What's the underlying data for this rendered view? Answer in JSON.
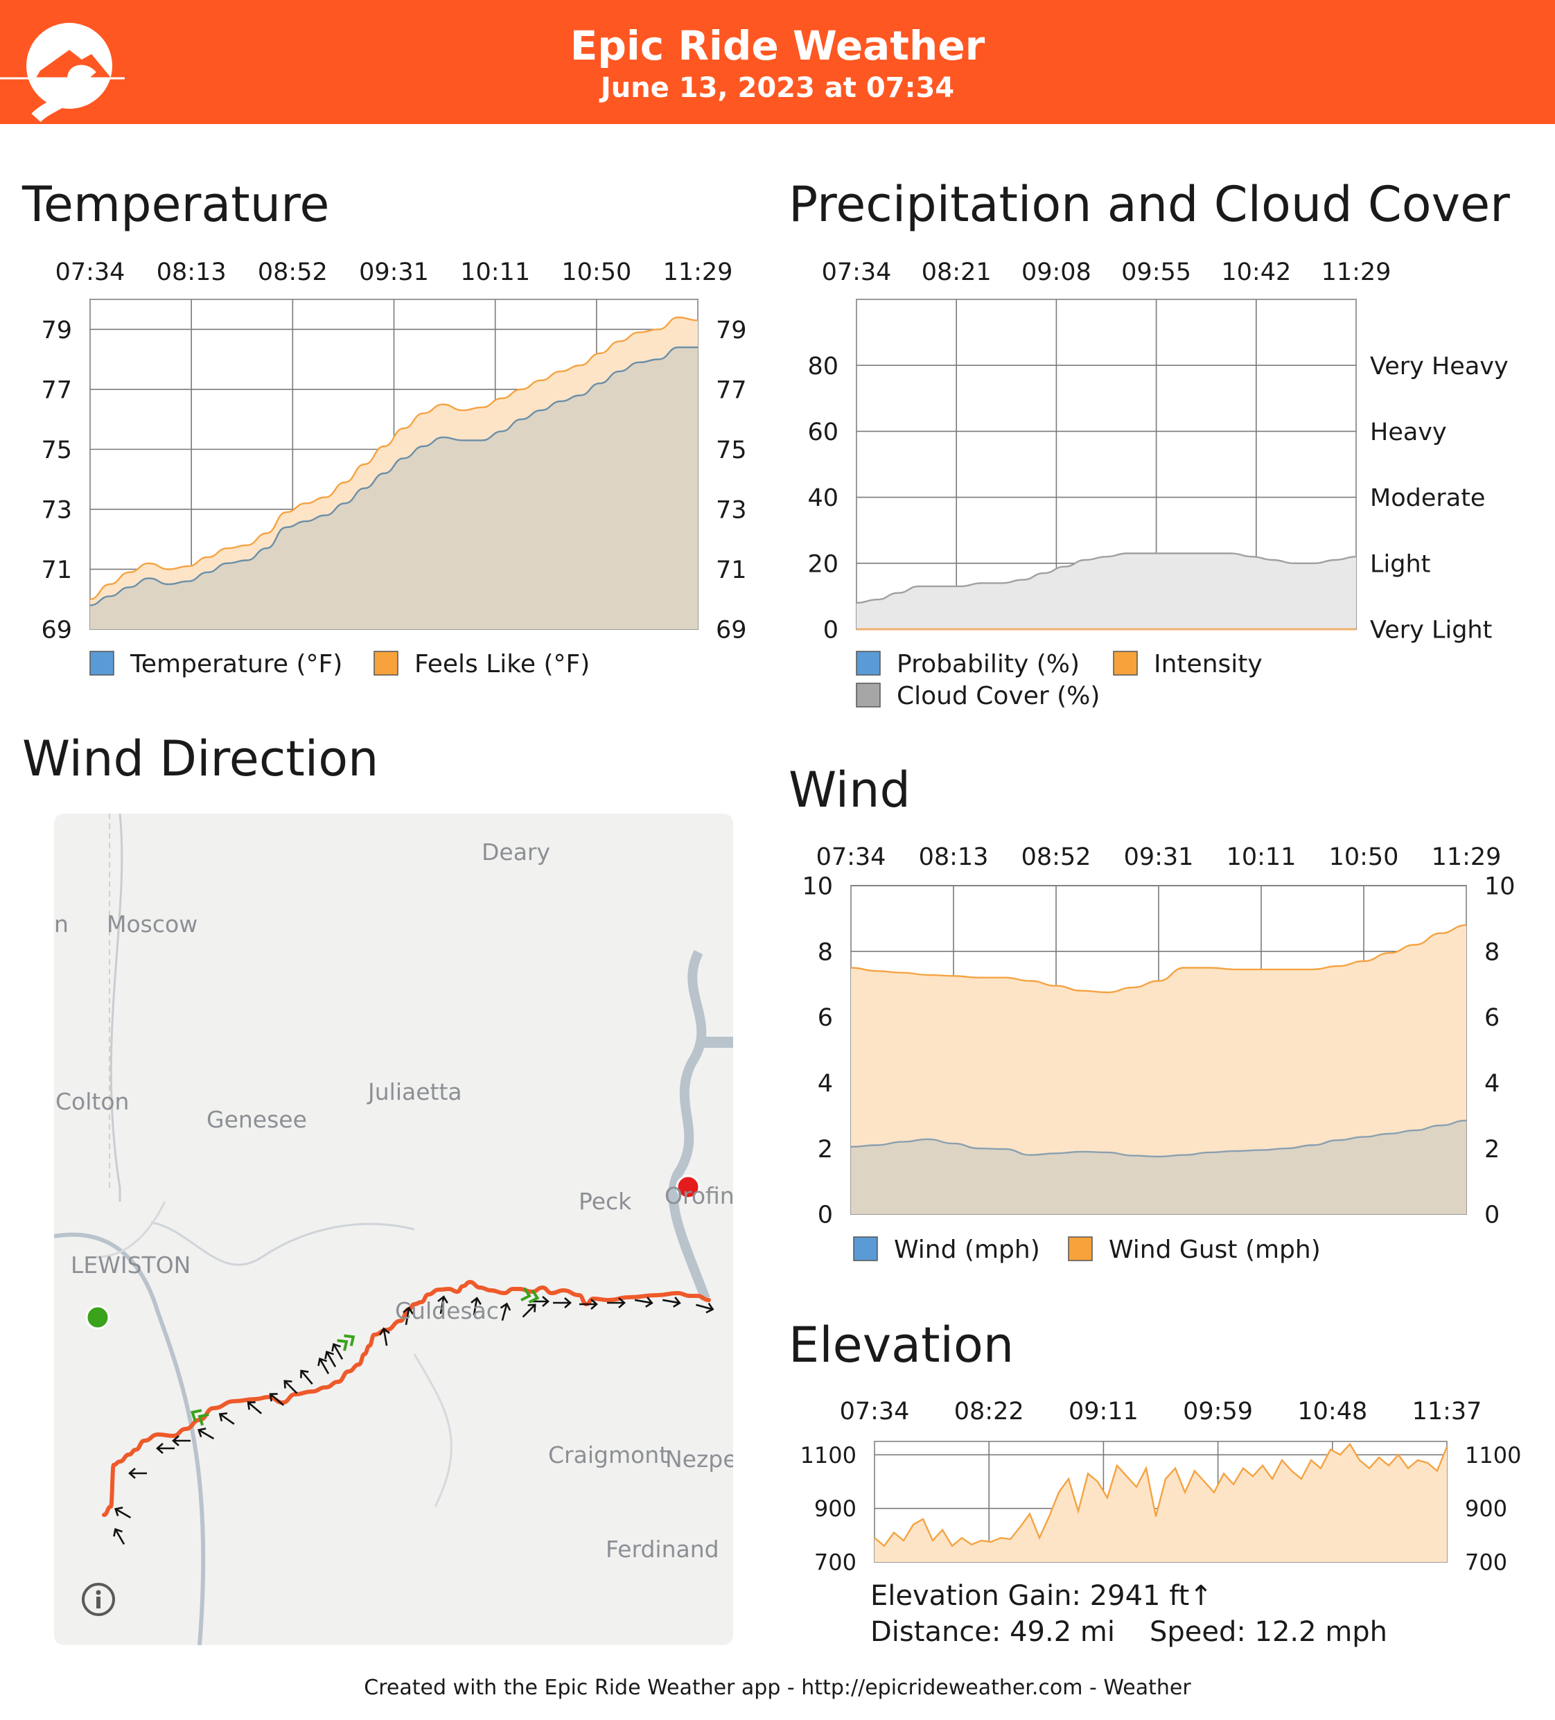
{
  "header": {
    "title": "Epic Ride Weather",
    "subtitle": "June 13, 2023 at 07:34",
    "background_color": "#ff5722"
  },
  "sections": {
    "temperature": "Temperature",
    "precipitation": "Precipitation and Cloud Cover",
    "wind_direction": "Wind Direction",
    "wind": "Wind",
    "elevation": "Elevation"
  },
  "chart_data": [
    {
      "id": "temperature",
      "type": "area",
      "title": "Temperature",
      "x_labels": [
        "07:34",
        "08:13",
        "08:52",
        "09:31",
        "10:11",
        "10:50",
        "11:29"
      ],
      "y_ticks": [
        69,
        71,
        73,
        75,
        77,
        79
      ],
      "ylim": [
        69,
        80
      ],
      "grid": true,
      "legend_placement": "bottom",
      "series": [
        {
          "name": "Temperature (°F)",
          "color": "#5b9bd5",
          "values": [
            69.8,
            70.1,
            70.4,
            70.7,
            70.5,
            70.6,
            70.9,
            71.2,
            71.3,
            71.7,
            72.4,
            72.6,
            72.8,
            73.2,
            73.7,
            74.2,
            74.7,
            75.1,
            75.4,
            75.3,
            75.3,
            75.6,
            76.0,
            76.3,
            76.6,
            76.8,
            77.2,
            77.6,
            77.9,
            78.0,
            78.4,
            78.4
          ]
        },
        {
          "name": "Feels Like (°F)",
          "color": "#f7a23a",
          "values": [
            70.0,
            70.5,
            70.9,
            71.2,
            71.0,
            71.1,
            71.4,
            71.7,
            71.8,
            72.2,
            72.9,
            73.2,
            73.4,
            73.9,
            74.5,
            75.1,
            75.7,
            76.2,
            76.5,
            76.3,
            76.4,
            76.7,
            77.0,
            77.3,
            77.6,
            77.8,
            78.2,
            78.6,
            78.9,
            79.0,
            79.4,
            79.3
          ]
        }
      ]
    },
    {
      "id": "precipitation",
      "type": "area",
      "title": "Precipitation and Cloud Cover",
      "x_labels": [
        "07:34",
        "08:21",
        "09:08",
        "09:55",
        "10:42",
        "11:29"
      ],
      "y_ticks": [
        0,
        20,
        40,
        60,
        80
      ],
      "right_labels": [
        "Very Light",
        "Light",
        "Moderate",
        "Heavy",
        "Very Heavy"
      ],
      "ylim": [
        0,
        100
      ],
      "grid": true,
      "legend_placement": "bottom",
      "series": [
        {
          "name": "Probability (%)",
          "color": "#5b9bd5",
          "values": [
            0,
            0,
            0,
            0,
            0,
            0,
            0,
            0,
            0,
            0,
            0,
            0,
            0,
            0,
            0,
            0,
            0,
            0,
            0,
            0,
            0,
            0,
            0,
            0,
            0
          ]
        },
        {
          "name": "Intensity",
          "color": "#f7a23a",
          "values": [
            0,
            0,
            0,
            0,
            0,
            0,
            0,
            0,
            0,
            0,
            0,
            0,
            0,
            0,
            0,
            0,
            0,
            0,
            0,
            0,
            0,
            0,
            0,
            0,
            0
          ]
        },
        {
          "name": "Cloud Cover (%)",
          "color": "#a6a6a6",
          "values": [
            8,
            9,
            11,
            13,
            13,
            13,
            14,
            14,
            15,
            17,
            19,
            21,
            22,
            23,
            23,
            23,
            23,
            23,
            23,
            22,
            21,
            20,
            20,
            21,
            22
          ]
        }
      ]
    },
    {
      "id": "wind",
      "type": "area",
      "title": "Wind",
      "x_labels": [
        "07:34",
        "08:13",
        "08:52",
        "09:31",
        "10:11",
        "10:50",
        "11:29"
      ],
      "y_ticks": [
        0,
        2,
        4,
        6,
        8,
        10
      ],
      "ylim": [
        0,
        10
      ],
      "grid": true,
      "legend_placement": "bottom",
      "series": [
        {
          "name": "Wind (mph)",
          "color": "#5b9bd5",
          "values": [
            2.05,
            2.1,
            2.2,
            2.28,
            2.15,
            2.0,
            1.98,
            1.8,
            1.85,
            1.9,
            1.88,
            1.78,
            1.75,
            1.8,
            1.88,
            1.92,
            1.95,
            2.0,
            2.1,
            2.25,
            2.35,
            2.45,
            2.55,
            2.7,
            2.85
          ]
        },
        {
          "name": "Wind Gust (mph)",
          "color": "#f7a23a",
          "values": [
            7.5,
            7.4,
            7.35,
            7.28,
            7.25,
            7.2,
            7.2,
            7.1,
            6.95,
            6.8,
            6.75,
            6.9,
            7.1,
            7.5,
            7.5,
            7.45,
            7.45,
            7.45,
            7.45,
            7.55,
            7.7,
            7.95,
            8.2,
            8.55,
            8.8
          ]
        }
      ]
    },
    {
      "id": "elevation",
      "type": "area",
      "title": "Elevation",
      "x_labels": [
        "07:34",
        "08:22",
        "09:11",
        "09:59",
        "10:48",
        "11:37"
      ],
      "y_ticks": [
        700,
        900,
        1100
      ],
      "ylim": [
        700,
        1150
      ],
      "grid": true,
      "series": [
        {
          "name": "Elevation",
          "color": "#f7a23a",
          "values": [
            790,
            760,
            810,
            780,
            840,
            860,
            780,
            820,
            760,
            790,
            765,
            780,
            775,
            790,
            785,
            830,
            880,
            790,
            870,
            960,
            1010,
            890,
            1030,
            1000,
            940,
            1060,
            1020,
            980,
            1050,
            870,
            1010,
            1050,
            960,
            1040,
            1000,
            960,
            1030,
            990,
            1050,
            1020,
            1060,
            1010,
            1080,
            1040,
            1010,
            1080,
            1050,
            1120,
            1100,
            1140,
            1080,
            1050,
            1090,
            1060,
            1100,
            1050,
            1080,
            1070,
            1040,
            1130
          ]
        }
      ]
    }
  ],
  "map": {
    "places": [
      "Deary",
      "Moscow",
      "Colton",
      "Genesee",
      "Juliaetta",
      "LEWISTON",
      "Peck",
      "Orofino",
      "Culdesac",
      "Craigmont",
      "Nezperce",
      "Ferdinand"
    ],
    "partial_place": "n",
    "info_icon": "info-icon",
    "start_marker_color": "#3aa21b",
    "end_marker_color": "#e51c1c",
    "route_color": "#ee5a2a",
    "wind_arrow_color": "#111111",
    "tailwind_color": "#3aa21b"
  },
  "stats": {
    "elevation_gain": "Elevation Gain: 2941 ft",
    "elevation_gain_arrow": "↑",
    "distance": "Distance: 49.2 mi",
    "speed": "Speed: 12.2 mph"
  },
  "footer": {
    "text_prefix": "Created with the Epic Ride Weather app - http://epicrideweather.com - ",
    "apple_glyph": "",
    "text_suffix": "Weather"
  }
}
